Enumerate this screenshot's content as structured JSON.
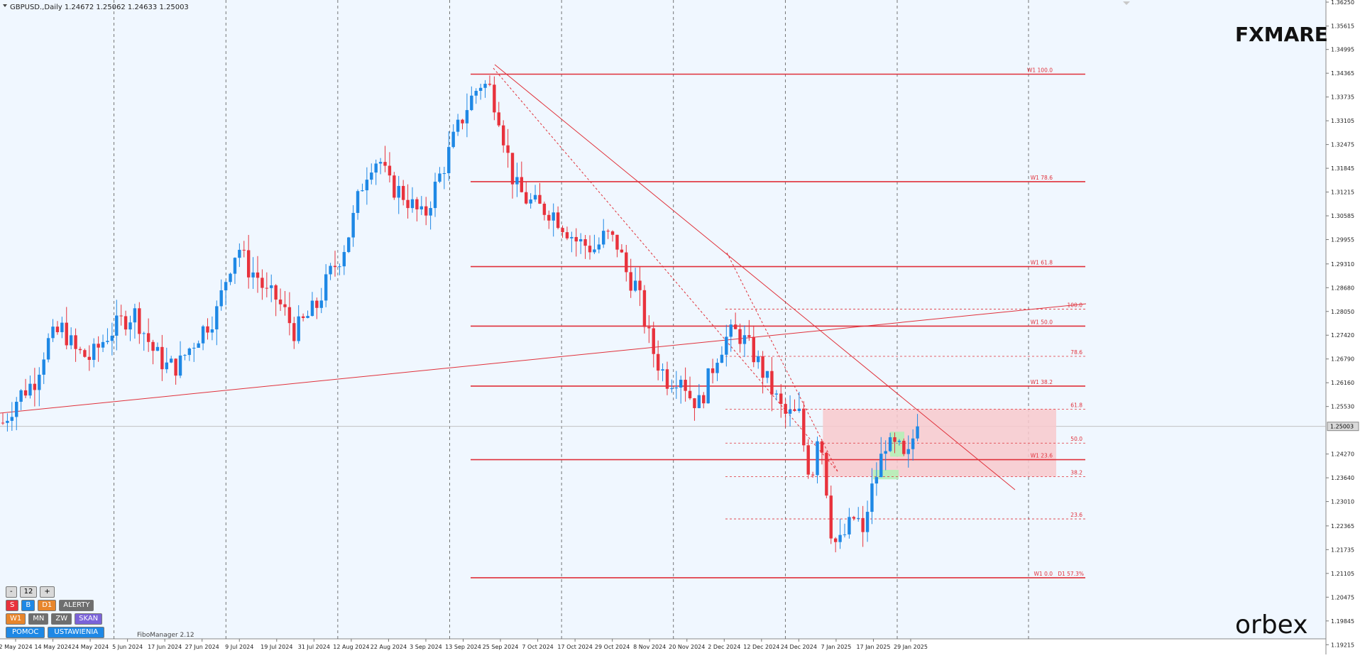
{
  "header": {
    "symbol_info": "GBPUSD.,Daily  1.24672 1.25062 1.24633 1.25003"
  },
  "logos": {
    "top": "FXMARE",
    "bottom": "orbex"
  },
  "indicator_label": "FiboManager 2.12",
  "panel": {
    "minus": "-",
    "value": "12",
    "plus": "+",
    "s": "S",
    "b": "B",
    "d1": "D1",
    "alerty": "ALERTY",
    "w1": "W1",
    "mn": "MN",
    "zw": "ZW",
    "skan": "SKAN",
    "pomoc": "POMOC",
    "ustawienia": "USTAWIENIA"
  },
  "colors": {
    "bull": "#1e88e5",
    "bear": "#e8323c",
    "level": "#e0303a",
    "zone": "#f8c9cd",
    "background": "#f0f7ff"
  },
  "price_axis": {
    "labels": [
      "1.36250",
      "1.35615",
      "1.34995",
      "1.34365",
      "1.33735",
      "1.33105",
      "1.32475",
      "1.31845",
      "1.31215",
      "1.30585",
      "1.29955",
      "1.29310",
      "1.28680",
      "1.28050",
      "1.27420",
      "1.26790",
      "1.26160",
      "1.25530",
      "1.24270",
      "1.23640",
      "1.23010",
      "1.22365",
      "1.21735",
      "1.21105",
      "1.20475",
      "1.19845",
      "1.19215"
    ],
    "current_price": "1.25003"
  },
  "time_axis": {
    "labels": [
      "2 May 2024",
      "14 May 2024",
      "24 May 2024",
      "5 Jun 2024",
      "17 Jun 2024",
      "27 Jun 2024",
      "9 Jul 2024",
      "19 Jul 2024",
      "31 Jul 2024",
      "12 Aug 2024",
      "22 Aug 2024",
      "3 Sep 2024",
      "13 Sep 2024",
      "25 Sep 2024",
      "7 Oct 2024",
      "17 Oct 2024",
      "29 Oct 2024",
      "8 Nov 2024",
      "20 Nov 2024",
      "2 Dec 2024",
      "12 Dec 2024",
      "24 Dec 2024",
      "7 Jan 2025",
      "17 Jan 2025",
      "29 Jan 2025"
    ]
  },
  "chart_data": {
    "type": "candlestick",
    "symbol": "GBPUSD.",
    "timeframe": "Daily",
    "ohlc_last": {
      "open": 1.24672,
      "high": 1.25062,
      "low": 1.24633,
      "close": 1.25003
    },
    "y_range": [
      1.1922,
      1.3625
    ],
    "x_range_days": [
      0,
      276
    ],
    "first_date": "2 May 2024",
    "close_path": [
      [
        0,
        1.251
      ],
      [
        5,
        1.258
      ],
      [
        10,
        1.262
      ],
      [
        14,
        1.272
      ],
      [
        19,
        1.276
      ],
      [
        23,
        1.27
      ],
      [
        28,
        1.268
      ],
      [
        33,
        1.274
      ],
      [
        38,
        1.278
      ],
      [
        42,
        1.28
      ],
      [
        45,
        1.275
      ],
      [
        48,
        1.27
      ],
      [
        52,
        1.266
      ],
      [
        56,
        1.266
      ],
      [
        58,
        1.269
      ],
      [
        63,
        1.275
      ],
      [
        68,
        1.28
      ],
      [
        72,
        1.292
      ],
      [
        75,
        1.298
      ],
      [
        78,
        1.292
      ],
      [
        81,
        1.29
      ],
      [
        84,
        1.285
      ],
      [
        87,
        1.284
      ],
      [
        90,
        1.28
      ],
      [
        93,
        1.275
      ],
      [
        96,
        1.278
      ],
      [
        100,
        1.282
      ],
      [
        104,
        1.29
      ],
      [
        108,
        1.296
      ],
      [
        111,
        1.303
      ],
      [
        114,
        1.313
      ],
      [
        117,
        1.32
      ],
      [
        120,
        1.321
      ],
      [
        123,
        1.314
      ],
      [
        127,
        1.312
      ],
      [
        131,
        1.308
      ],
      [
        134,
        1.305
      ],
      [
        138,
        1.314
      ],
      [
        141,
        1.32
      ],
      [
        144,
        1.327
      ],
      [
        148,
        1.335
      ],
      [
        152,
        1.341
      ],
      [
        155,
        1.34
      ],
      [
        158,
        1.333
      ],
      [
        160,
        1.325
      ],
      [
        163,
        1.314
      ],
      [
        167,
        1.31
      ],
      [
        171,
        1.308
      ],
      [
        175,
        1.307
      ],
      [
        179,
        1.303
      ],
      [
        183,
        1.299
      ],
      [
        186,
        1.298
      ],
      [
        189,
        1.297
      ],
      [
        192,
        1.301
      ],
      [
        196,
        1.298
      ],
      [
        199,
        1.29
      ],
      [
        202,
        1.287
      ],
      [
        205,
        1.276
      ],
      [
        208,
        1.268
      ],
      [
        212,
        1.262
      ],
      [
        216,
        1.264
      ],
      [
        219,
        1.258
      ],
      [
        222,
        1.256
      ],
      [
        225,
        1.263
      ],
      [
        228,
        1.27
      ],
      [
        231,
        1.274
      ],
      [
        234,
        1.275
      ],
      [
        237,
        1.272
      ],
      [
        240,
        1.268
      ],
      [
        243,
        1.263
      ],
      [
        246,
        1.258
      ],
      [
        249,
        1.253
      ],
      [
        252,
        1.253
      ],
      [
        254,
        1.253
      ],
      [
        256,
        1.24
      ],
      [
        258,
        1.238
      ],
      [
        260,
        1.251
      ],
      [
        262,
        1.237
      ],
      [
        264,
        1.222
      ],
      [
        266,
        1.218
      ],
      [
        268,
        1.221
      ],
      [
        270,
        1.224
      ],
      [
        272,
        1.227
      ],
      [
        274,
        1.22
      ],
      [
        276,
        1.231
      ],
      [
        278,
        1.236
      ],
      [
        280,
        1.242
      ],
      [
        282,
        1.248
      ],
      [
        283,
        1.243
      ],
      [
        285,
        1.245
      ],
      [
        287,
        1.241
      ],
      [
        288,
        1.24
      ],
      [
        290,
        1.247
      ],
      [
        292,
        1.25
      ]
    ],
    "horizontal_levels": [
      {
        "label": "W1 100.0",
        "price": 1.3434,
        "start_day": 161,
        "style": "solid"
      },
      {
        "label": "W1 78.6",
        "price": 1.3149,
        "start_day": 161,
        "style": "solid"
      },
      {
        "label": "W1 61.8",
        "price": 1.2924,
        "start_day": 161,
        "style": "solid"
      },
      {
        "label": "W1 50.0",
        "price": 1.2766,
        "start_day": 161,
        "style": "solid"
      },
      {
        "label": "W1 38.2",
        "price": 1.2607,
        "start_day": 161,
        "style": "solid"
      },
      {
        "label": "W1 23.6",
        "price": 1.2412,
        "start_day": 161,
        "style": "solid"
      },
      {
        "label": "W1 0.0",
        "price": 1.2099,
        "start_day": 161,
        "style": "solid"
      },
      {
        "label": "100.0",
        "price": 1.2811,
        "start_day": 247,
        "style": "dashed"
      },
      {
        "label": "78.6",
        "price": 1.2686,
        "start_day": 247,
        "style": "dashed"
      },
      {
        "label": "61.8",
        "price": 1.2546,
        "start_day": 247,
        "style": "dashed"
      },
      {
        "label": "50.0",
        "price": 1.2456,
        "start_day": 247,
        "style": "dashed"
      },
      {
        "label": "38.2",
        "price": 1.2367,
        "start_day": 247,
        "style": "dashed"
      },
      {
        "label": "23.6",
        "price": 1.2255,
        "start_day": 247,
        "style": "dashed"
      }
    ],
    "level_extra_label": "D1 57.3%",
    "zone": {
      "day_start": 247,
      "day_end": 365,
      "price_low": 1.2367,
      "price_high": 1.2546
    },
    "trendlines": [
      {
        "from": [
          0,
          1.2307
        ],
        "to": [
          372,
          1.2627
        ],
        "style": "solid"
      },
      {
        "from": [
          171,
          1.3432
        ],
        "to": [
          358,
          1.2032
        ],
        "style": "solid"
      },
      {
        "from": [
          169,
          1.3387
        ],
        "to": [
          286,
          1.2099
        ],
        "style": "dashed"
      },
      {
        "from": [
          247,
          1.2811
        ],
        "to": [
          286,
          1.2099
        ],
        "style": "dashed"
      }
    ]
  }
}
